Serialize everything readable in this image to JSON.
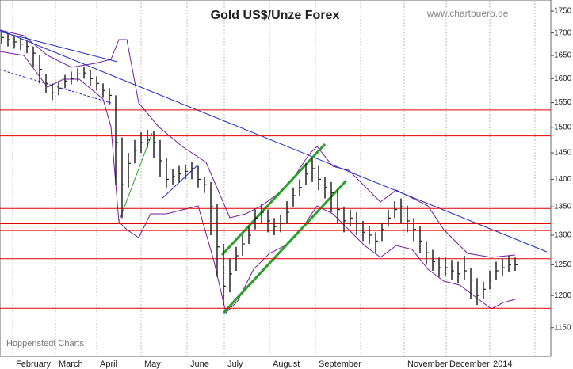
{
  "chart_data": {
    "type": "ohlc",
    "title": "Gold US$/Unze Forex",
    "source": "www.chartbuero.de",
    "credit": "Hoppenstedt Charts",
    "categories": [
      "February",
      "March",
      "April",
      "May",
      "June",
      "July",
      "August",
      "September",
      null,
      "November",
      "December",
      "2014"
    ],
    "color": "#222222",
    "level_color": "#e00000",
    "log_scale": true,
    "ylim": [
      1107,
      1776
    ],
    "yticks": [
      1150,
      1200,
      1250,
      1300,
      1350,
      1400,
      1450,
      1500,
      1550,
      1600,
      1650,
      1700,
      1750
    ],
    "levels": [
      1535,
      1483,
      1347,
      1320,
      1308,
      1260,
      1180
    ],
    "high": [
      1705,
      1698,
      1692,
      1688,
      1682,
      1670,
      1650,
      1610,
      1590,
      1595,
      1608,
      1615,
      1622,
      1625,
      1618,
      1605,
      1590,
      1580,
      1565,
      1480,
      1450,
      1475,
      1490,
      1495,
      1492,
      1475,
      1440,
      1420,
      1425,
      1428,
      1432,
      1425,
      1405,
      1395,
      1355,
      1285,
      1260,
      1280,
      1300,
      1315,
      1345,
      1355,
      1345,
      1330,
      1335,
      1360,
      1385,
      1400,
      1430,
      1440,
      1425,
      1405,
      1395,
      1380,
      1350,
      1345,
      1340,
      1325,
      1315,
      1305,
      1322,
      1345,
      1360,
      1365,
      1352,
      1330,
      1315,
      1290,
      1275,
      1262,
      1262,
      1258,
      1255,
      1265,
      1245,
      1228,
      1222,
      1240,
      1255,
      1260,
      1265,
      1262
    ],
    "low": [
      1675,
      1670,
      1665,
      1662,
      1655,
      1625,
      1590,
      1570,
      1555,
      1565,
      1580,
      1588,
      1595,
      1600,
      1585,
      1575,
      1560,
      1545,
      1390,
      1330,
      1385,
      1430,
      1450,
      1460,
      1440,
      1405,
      1385,
      1390,
      1395,
      1400,
      1400,
      1385,
      1375,
      1300,
      1230,
      1185,
      1205,
      1240,
      1265,
      1285,
      1310,
      1320,
      1305,
      1300,
      1305,
      1320,
      1350,
      1370,
      1390,
      1395,
      1380,
      1365,
      1340,
      1320,
      1305,
      1315,
      1300,
      1290,
      1285,
      1270,
      1290,
      1315,
      1330,
      1320,
      1305,
      1290,
      1270,
      1250,
      1240,
      1230,
      1232,
      1225,
      1220,
      1225,
      1195,
      1185,
      1195,
      1210,
      1225,
      1232,
      1238,
      1240
    ],
    "close": [
      1690,
      1685,
      1680,
      1675,
      1670,
      1655,
      1620,
      1590,
      1570,
      1580,
      1595,
      1600,
      1610,
      1612,
      1600,
      1590,
      1575,
      1565,
      1470,
      1390,
      1430,
      1455,
      1470,
      1475,
      1470,
      1435,
      1400,
      1405,
      1410,
      1415,
      1420,
      1400,
      1390,
      1350,
      1280,
      1215,
      1235,
      1265,
      1285,
      1300,
      1330,
      1340,
      1325,
      1315,
      1320,
      1340,
      1370,
      1385,
      1410,
      1420,
      1400,
      1385,
      1375,
      1345,
      1325,
      1330,
      1320,
      1305,
      1300,
      1290,
      1310,
      1330,
      1345,
      1350,
      1325,
      1310,
      1290,
      1270,
      1255,
      1245,
      1245,
      1240,
      1235,
      1240,
      1225,
      1200,
      1210,
      1225,
      1240,
      1245,
      1250,
      1250
    ]
  }
}
